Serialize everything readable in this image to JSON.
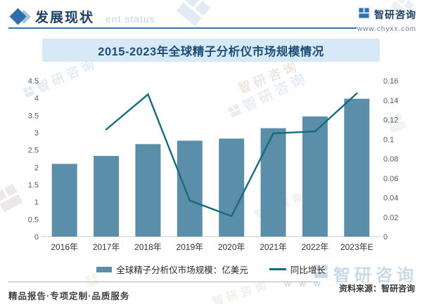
{
  "header": {
    "title": "发展现状",
    "watermark_text": "ent status",
    "brand": {
      "name": "智研咨询",
      "url": "www.chyxx.com"
    }
  },
  "chart": {
    "title": "2015-2023年全球精子分析仪市场规模情况",
    "legend": [
      {
        "label": "全球精子分析仪市场规模：亿美元",
        "type": "bar"
      },
      {
        "label": "同比增长",
        "type": "line"
      }
    ]
  },
  "chart_data": {
    "type": "bar+line",
    "title": "2015-2023年全球精子分析仪市场规模情况",
    "categories": [
      "2016年",
      "2017年",
      "2018年",
      "2019年",
      "2020年",
      "2021年",
      "2022年",
      "2023年E"
    ],
    "series": [
      {
        "name": "全球精子分析仪市场规模：亿美元",
        "type": "bar",
        "axis": "left",
        "values": [
          2.1,
          2.33,
          2.67,
          2.77,
          2.83,
          3.13,
          3.47,
          3.98
        ]
      },
      {
        "name": "同比增长",
        "type": "line",
        "axis": "right",
        "values": [
          null,
          0.11,
          0.146,
          0.037,
          0.021,
          0.106,
          0.108,
          0.147
        ]
      }
    ],
    "left_axis": {
      "min": 0,
      "max": 4.5,
      "step": 0.5,
      "ticks": [
        "0",
        "0.5",
        "1",
        "1.5",
        "2",
        "2.5",
        "3",
        "3.5",
        "4",
        "4.5"
      ]
    },
    "right_axis": {
      "min": 0,
      "max": 0.16,
      "step": 0.02,
      "ticks": [
        "0",
        "0.02",
        "0.04",
        "0.06",
        "0.08",
        "0.1",
        "0.12",
        "0.14",
        "0.16"
      ]
    },
    "grid": false,
    "legend_position": "bottom",
    "colors": {
      "bar": "#5b8fa9",
      "line": "#176b80",
      "axis_line": "#cbcbcb",
      "tick_label": "#595959",
      "category_label": "#333333"
    }
  },
  "footer": {
    "tagline": "精品报告·专项定制·品质服务",
    "source": "资料来源：智研咨询"
  },
  "watermarks": {
    "brand_text": "智研咨询",
    "www_text": "w w w ."
  }
}
